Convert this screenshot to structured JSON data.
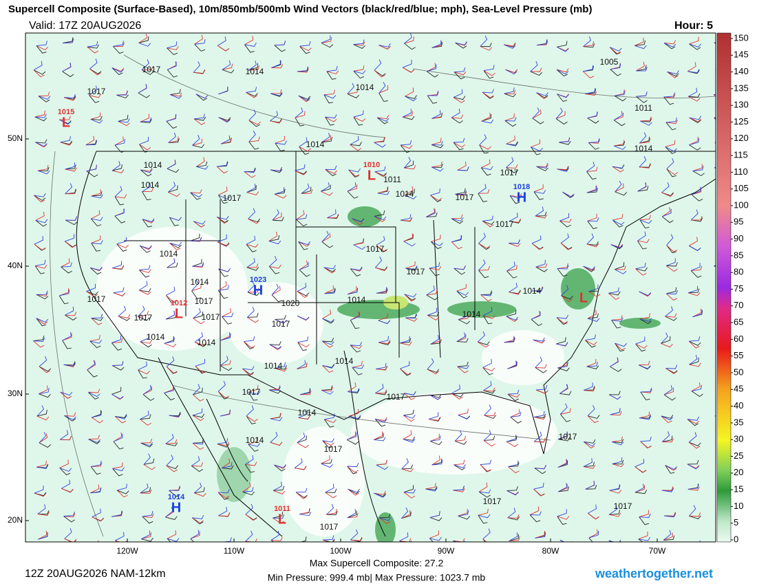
{
  "header": {
    "title": "Supercell Composite (Surface-Based), 10m/850mb/500mb Wind Vectors (black/red/blue; mph), Sea-Level Pressure (mb)",
    "valid": "Valid: 17Z 20AUG2026",
    "hour": "Hour: 5"
  },
  "map": {
    "lat_labels": [
      "50N",
      "40N",
      "30N",
      "20N"
    ],
    "lon_labels": [
      "120W",
      "110W",
      "100W",
      "90W",
      "80W",
      "70W"
    ],
    "isobar_labels": [
      "1017",
      "1014",
      "1017",
      "1014",
      "1005",
      "1011",
      "1014",
      "1014",
      "1014",
      "1014",
      "1017",
      "1011",
      "1014",
      "1017",
      "1017",
      "1017",
      "1017",
      "1014",
      "1014",
      "1017",
      "1017",
      "1020",
      "1017",
      "1017",
      "1017",
      "1014",
      "1014",
      "1014",
      "1014",
      "1014",
      "1017",
      "1014",
      "1014",
      "1017",
      "1014",
      "1017",
      "1014",
      "1017",
      "1017",
      "1017",
      "1017",
      "1017"
    ],
    "pressure_centers": [
      {
        "letter": "L",
        "pressure": "1015"
      },
      {
        "letter": "L",
        "pressure": "1010"
      },
      {
        "letter": "H",
        "pressure": "1018"
      },
      {
        "letter": "H",
        "pressure": "1023"
      },
      {
        "letter": "L",
        "pressure": "1012"
      },
      {
        "letter": "L"
      },
      {
        "letter": "H",
        "pressure": "1014"
      },
      {
        "letter": "L",
        "pressure": "1011"
      }
    ]
  },
  "colorbar": {
    "ticks": [
      0,
      5,
      10,
      15,
      20,
      25,
      30,
      35,
      40,
      45,
      50,
      55,
      60,
      65,
      70,
      75,
      80,
      85,
      90,
      95,
      100,
      105,
      110,
      115,
      120,
      125,
      130,
      135,
      140,
      145,
      150
    ],
    "lim": [
      0,
      150
    ]
  },
  "footer": {
    "run": "12Z 20AUG2026 NAM-12km",
    "max_composite": "Max Supercell Composite:  27.2",
    "pressure_range": "Min Pressure: 999.4 mb| Max Pressure: 1023.7 mb",
    "site": "weathertogether.net"
  }
}
